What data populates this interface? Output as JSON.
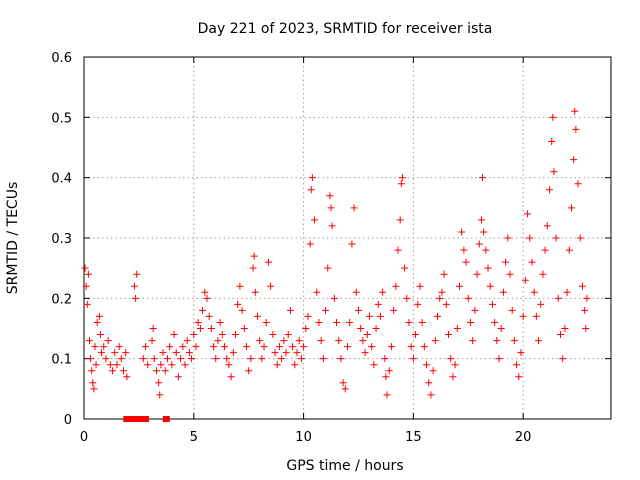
{
  "chart_data": {
    "type": "scatter",
    "title": "Day 221 of 2023, SRMTID for receiver ista",
    "xlabel": "GPS time / hours",
    "ylabel": "SRMTID / TECUs",
    "xlim": [
      0,
      24
    ],
    "ylim": [
      0,
      0.6
    ],
    "xticks": [
      0,
      5,
      10,
      15,
      20
    ],
    "xtick_labels": [
      "0",
      "5",
      "10",
      "15",
      "20"
    ],
    "yticks": [
      0,
      0.1,
      0.2,
      0.3,
      0.4,
      0.5,
      0.6
    ],
    "ytick_labels": [
      "0",
      "0.1",
      "0.2",
      "0.3",
      "0.4",
      "0.5",
      "0.6"
    ],
    "grid": true,
    "marker": "plus",
    "color": "#ff0000",
    "series": [
      {
        "name": "SRMTID",
        "points": [
          [
            0.05,
            0.25
          ],
          [
            0.1,
            0.22
          ],
          [
            0.15,
            0.19
          ],
          [
            0.2,
            0.24
          ],
          [
            0.25,
            0.13
          ],
          [
            0.3,
            0.1
          ],
          [
            0.35,
            0.08
          ],
          [
            0.4,
            0.06
          ],
          [
            0.45,
            0.05
          ],
          [
            0.5,
            0.12
          ],
          [
            0.55,
            0.09
          ],
          [
            0.6,
            0.16
          ],
          [
            0.7,
            0.17
          ],
          [
            0.75,
            0.14
          ],
          [
            0.8,
            0.11
          ],
          [
            0.9,
            0.12
          ],
          [
            1.0,
            0.1
          ],
          [
            1.1,
            0.13
          ],
          [
            1.2,
            0.09
          ],
          [
            1.3,
            0.08
          ],
          [
            1.4,
            0.11
          ],
          [
            1.5,
            0.09
          ],
          [
            1.6,
            0.12
          ],
          [
            1.7,
            0.1
          ],
          [
            1.8,
            0.08
          ],
          [
            1.9,
            0.11
          ],
          [
            1.95,
            0.07
          ],
          [
            2.3,
            0.22
          ],
          [
            2.35,
            0.2
          ],
          [
            2.4,
            0.24
          ],
          [
            2.7,
            0.1
          ],
          [
            2.8,
            0.12
          ],
          [
            2.9,
            0.09
          ],
          [
            3.1,
            0.13
          ],
          [
            3.15,
            0.15
          ],
          [
            3.2,
            0.1
          ],
          [
            3.3,
            0.08
          ],
          [
            3.4,
            0.06
          ],
          [
            3.45,
            0.04
          ],
          [
            3.5,
            0.09
          ],
          [
            3.6,
            0.11
          ],
          [
            3.7,
            0.08
          ],
          [
            3.8,
            0.1
          ],
          [
            3.9,
            0.12
          ],
          [
            4.0,
            0.09
          ],
          [
            4.1,
            0.14
          ],
          [
            4.2,
            0.11
          ],
          [
            4.3,
            0.07
          ],
          [
            4.4,
            0.1
          ],
          [
            4.5,
            0.12
          ],
          [
            4.6,
            0.09
          ],
          [
            4.7,
            0.13
          ],
          [
            4.8,
            0.11
          ],
          [
            4.9,
            0.1
          ],
          [
            5.0,
            0.14
          ],
          [
            5.1,
            0.12
          ],
          [
            5.2,
            0.16
          ],
          [
            5.3,
            0.15
          ],
          [
            5.4,
            0.18
          ],
          [
            5.5,
            0.21
          ],
          [
            5.6,
            0.2
          ],
          [
            5.7,
            0.17
          ],
          [
            5.8,
            0.15
          ],
          [
            5.9,
            0.12
          ],
          [
            6.0,
            0.1
          ],
          [
            6.1,
            0.13
          ],
          [
            6.2,
            0.16
          ],
          [
            6.3,
            0.14
          ],
          [
            6.4,
            0.12
          ],
          [
            6.5,
            0.1
          ],
          [
            6.6,
            0.09
          ],
          [
            6.7,
            0.07
          ],
          [
            6.8,
            0.11
          ],
          [
            6.9,
            0.14
          ],
          [
            7.0,
            0.19
          ],
          [
            7.1,
            0.22
          ],
          [
            7.2,
            0.18
          ],
          [
            7.3,
            0.15
          ],
          [
            7.4,
            0.12
          ],
          [
            7.5,
            0.08
          ],
          [
            7.6,
            0.1
          ],
          [
            7.7,
            0.25
          ],
          [
            7.75,
            0.27
          ],
          [
            7.8,
            0.21
          ],
          [
            7.9,
            0.17
          ],
          [
            8.0,
            0.13
          ],
          [
            8.1,
            0.1
          ],
          [
            8.2,
            0.12
          ],
          [
            8.3,
            0.16
          ],
          [
            8.4,
            0.26
          ],
          [
            8.5,
            0.22
          ],
          [
            8.6,
            0.14
          ],
          [
            8.7,
            0.11
          ],
          [
            8.8,
            0.09
          ],
          [
            8.9,
            0.12
          ],
          [
            9.0,
            0.1
          ],
          [
            9.1,
            0.13
          ],
          [
            9.2,
            0.11
          ],
          [
            9.3,
            0.14
          ],
          [
            9.4,
            0.18
          ],
          [
            9.5,
            0.12
          ],
          [
            9.6,
            0.09
          ],
          [
            9.7,
            0.11
          ],
          [
            9.8,
            0.13
          ],
          [
            9.9,
            0.1
          ],
          [
            10.0,
            0.12
          ],
          [
            10.1,
            0.15
          ],
          [
            10.2,
            0.17
          ],
          [
            10.3,
            0.29
          ],
          [
            10.35,
            0.38
          ],
          [
            10.4,
            0.4
          ],
          [
            10.5,
            0.33
          ],
          [
            10.6,
            0.21
          ],
          [
            10.7,
            0.16
          ],
          [
            10.8,
            0.13
          ],
          [
            10.9,
            0.1
          ],
          [
            11.0,
            0.18
          ],
          [
            11.1,
            0.25
          ],
          [
            11.2,
            0.37
          ],
          [
            11.25,
            0.35
          ],
          [
            11.3,
            0.32
          ],
          [
            11.4,
            0.2
          ],
          [
            11.5,
            0.16
          ],
          [
            11.6,
            0.13
          ],
          [
            11.7,
            0.1
          ],
          [
            11.8,
            0.06
          ],
          [
            11.9,
            0.05
          ],
          [
            12.0,
            0.12
          ],
          [
            12.1,
            0.16
          ],
          [
            12.2,
            0.29
          ],
          [
            12.3,
            0.35
          ],
          [
            12.4,
            0.21
          ],
          [
            12.5,
            0.18
          ],
          [
            12.6,
            0.15
          ],
          [
            12.7,
            0.13
          ],
          [
            12.8,
            0.11
          ],
          [
            12.9,
            0.14
          ],
          [
            13.0,
            0.17
          ],
          [
            13.1,
            0.12
          ],
          [
            13.2,
            0.09
          ],
          [
            13.3,
            0.15
          ],
          [
            13.4,
            0.19
          ],
          [
            13.5,
            0.17
          ],
          [
            13.6,
            0.21
          ],
          [
            13.7,
            0.1
          ],
          [
            13.75,
            0.07
          ],
          [
            13.8,
            0.04
          ],
          [
            13.9,
            0.08
          ],
          [
            14.0,
            0.12
          ],
          [
            14.1,
            0.18
          ],
          [
            14.2,
            0.22
          ],
          [
            14.3,
            0.28
          ],
          [
            14.4,
            0.33
          ],
          [
            14.45,
            0.39
          ],
          [
            14.5,
            0.4
          ],
          [
            14.6,
            0.25
          ],
          [
            14.7,
            0.2
          ],
          [
            14.8,
            0.16
          ],
          [
            14.9,
            0.12
          ],
          [
            15.0,
            0.1
          ],
          [
            15.1,
            0.14
          ],
          [
            15.2,
            0.19
          ],
          [
            15.3,
            0.22
          ],
          [
            15.4,
            0.16
          ],
          [
            15.5,
            0.12
          ],
          [
            15.6,
            0.09
          ],
          [
            15.7,
            0.06
          ],
          [
            15.8,
            0.04
          ],
          [
            15.9,
            0.08
          ],
          [
            16.0,
            0.13
          ],
          [
            16.1,
            0.17
          ],
          [
            16.2,
            0.2
          ],
          [
            16.3,
            0.21
          ],
          [
            16.4,
            0.24
          ],
          [
            16.5,
            0.19
          ],
          [
            16.6,
            0.14
          ],
          [
            16.7,
            0.1
          ],
          [
            16.8,
            0.07
          ],
          [
            16.9,
            0.09
          ],
          [
            17.0,
            0.15
          ],
          [
            17.1,
            0.22
          ],
          [
            17.2,
            0.31
          ],
          [
            17.3,
            0.28
          ],
          [
            17.4,
            0.26
          ],
          [
            17.5,
            0.2
          ],
          [
            17.6,
            0.16
          ],
          [
            17.7,
            0.13
          ],
          [
            17.8,
            0.18
          ],
          [
            17.9,
            0.24
          ],
          [
            18.0,
            0.29
          ],
          [
            18.1,
            0.33
          ],
          [
            18.15,
            0.4
          ],
          [
            18.2,
            0.31
          ],
          [
            18.3,
            0.28
          ],
          [
            18.4,
            0.25
          ],
          [
            18.5,
            0.22
          ],
          [
            18.6,
            0.19
          ],
          [
            18.7,
            0.16
          ],
          [
            18.8,
            0.13
          ],
          [
            18.9,
            0.1
          ],
          [
            19.0,
            0.15
          ],
          [
            19.1,
            0.21
          ],
          [
            19.2,
            0.26
          ],
          [
            19.3,
            0.3
          ],
          [
            19.4,
            0.24
          ],
          [
            19.5,
            0.18
          ],
          [
            19.6,
            0.13
          ],
          [
            19.7,
            0.09
          ],
          [
            19.8,
            0.07
          ],
          [
            19.9,
            0.11
          ],
          [
            20.0,
            0.17
          ],
          [
            20.1,
            0.23
          ],
          [
            20.2,
            0.34
          ],
          [
            20.3,
            0.3
          ],
          [
            20.4,
            0.26
          ],
          [
            20.5,
            0.21
          ],
          [
            20.6,
            0.17
          ],
          [
            20.7,
            0.13
          ],
          [
            20.8,
            0.19
          ],
          [
            20.9,
            0.24
          ],
          [
            21.0,
            0.28
          ],
          [
            21.1,
            0.32
          ],
          [
            21.2,
            0.38
          ],
          [
            21.3,
            0.46
          ],
          [
            21.35,
            0.5
          ],
          [
            21.4,
            0.41
          ],
          [
            21.5,
            0.3
          ],
          [
            21.6,
            0.2
          ],
          [
            21.7,
            0.14
          ],
          [
            21.8,
            0.1
          ],
          [
            21.9,
            0.15
          ],
          [
            22.0,
            0.21
          ],
          [
            22.1,
            0.28
          ],
          [
            22.2,
            0.35
          ],
          [
            22.3,
            0.43
          ],
          [
            22.35,
            0.51
          ],
          [
            22.4,
            0.48
          ],
          [
            22.5,
            0.39
          ],
          [
            22.6,
            0.3
          ],
          [
            22.7,
            0.22
          ],
          [
            22.8,
            0.18
          ],
          [
            22.85,
            0.15
          ],
          [
            22.9,
            0.2
          ]
        ],
        "zero_points": [
          [
            1.95,
            0
          ],
          [
            2.1,
            0
          ],
          [
            2.3,
            0
          ],
          [
            2.55,
            0
          ],
          [
            2.8,
            0
          ],
          [
            3.75,
            0
          ]
        ]
      }
    ]
  }
}
